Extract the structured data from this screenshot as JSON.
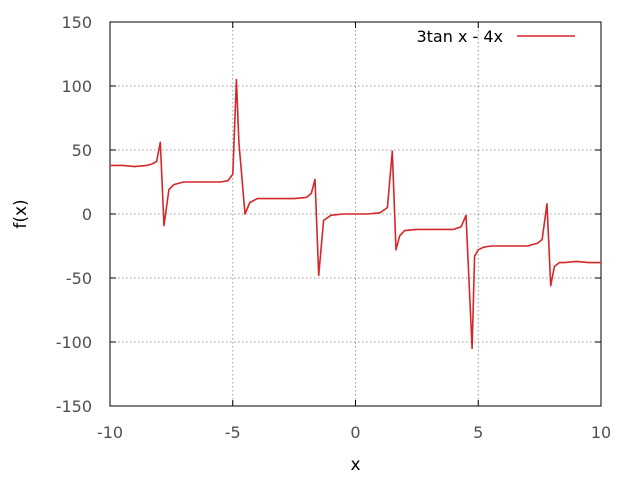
{
  "chart_data": {
    "type": "line",
    "title": "",
    "xlabel": "x",
    "ylabel": "f(x)",
    "xlim": [
      -10,
      10
    ],
    "ylim": [
      -150,
      150
    ],
    "xticks": [
      -10,
      -5,
      0,
      5,
      10
    ],
    "yticks": [
      -150,
      -100,
      -50,
      0,
      50,
      100,
      150
    ],
    "xtick_labels": [
      "-10",
      "-5",
      "0",
      "5",
      "10"
    ],
    "ytick_labels": [
      "-150",
      "-100",
      "-50",
      "0",
      "50",
      "100",
      "150"
    ],
    "grid": true,
    "legend_position": "top-right",
    "series": [
      {
        "name": "3tan x - 4x",
        "color": "#d62728",
        "x": [
          -10,
          -9.5,
          -9,
          -8.5,
          -8.3,
          -8.1,
          -7.95,
          -7.8,
          -7.6,
          -7.4,
          -7,
          -6.5,
          -6,
          -5.5,
          -5.2,
          -5.0,
          -4.85,
          -4.75,
          -4.5,
          -4.3,
          -4.0,
          -3.5,
          -3.0,
          -2.5,
          -2.0,
          -1.8,
          -1.65,
          -1.5,
          -1.3,
          -1.0,
          -0.5,
          0,
          0.5,
          1.0,
          1.3,
          1.5,
          1.65,
          1.8,
          2.0,
          2.5,
          3.0,
          3.5,
          4.0,
          4.3,
          4.5,
          4.75,
          4.85,
          5.0,
          5.2,
          5.5,
          6.0,
          6.5,
          7.0,
          7.4,
          7.6,
          7.8,
          7.95,
          8.1,
          8.3,
          8.5,
          9.0,
          9.5,
          10
        ],
        "y": [
          38,
          38,
          37,
          38,
          39,
          41,
          56,
          -9,
          19,
          23,
          25,
          25,
          25,
          25,
          26,
          31,
          105,
          56,
          0,
          9,
          12,
          12,
          12,
          12,
          13,
          16,
          27,
          -48,
          -5,
          -1,
          0,
          0,
          0,
          1,
          5,
          49,
          -28,
          -17,
          -13,
          -12,
          -12,
          -12,
          -12,
          -10,
          -1,
          -105,
          -33,
          -28,
          -26,
          -25,
          -25,
          -25,
          -25,
          -23,
          -20,
          8,
          -56,
          -41,
          -38,
          -38,
          -37,
          -38,
          -38
        ]
      }
    ]
  }
}
